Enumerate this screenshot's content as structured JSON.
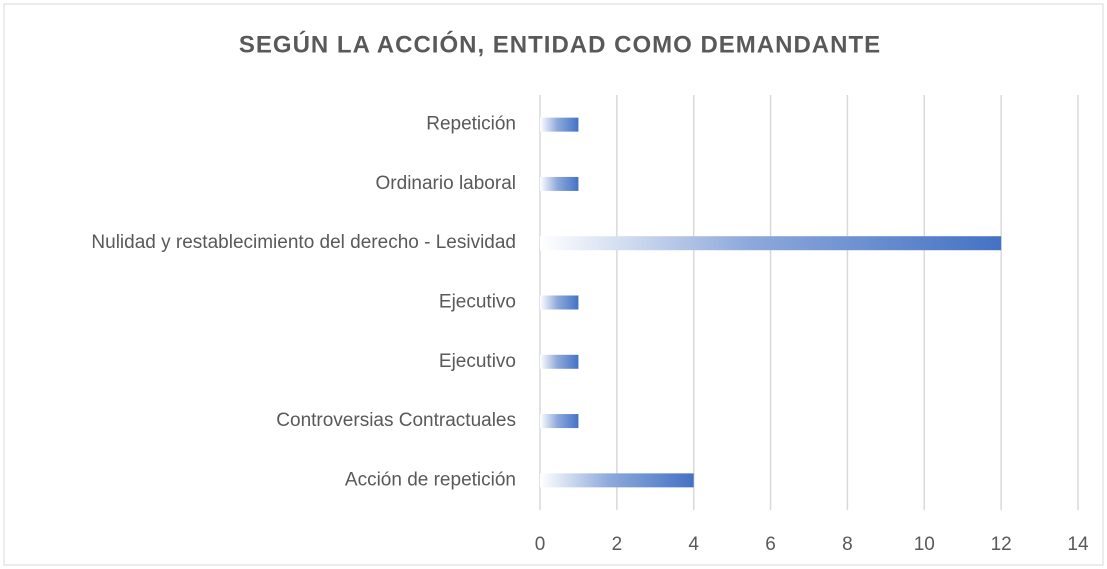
{
  "chart_data": {
    "type": "bar",
    "orientation": "horizontal",
    "title": "SEGÚN LA ACCIÓN, ENTIDAD COMO DEMANDANTE",
    "categories": [
      "Repetición",
      "Ordinario laboral",
      "Nulidad y restablecimiento del derecho - Lesividad",
      "Ejecutivo",
      "Ejecutivo",
      "Controversias Contractuales",
      "Acción de repetición"
    ],
    "values": [
      1,
      1,
      12,
      1,
      1,
      1,
      4
    ],
    "color": "#4472c4",
    "xlim": [
      0,
      14
    ],
    "xticks": [
      0,
      2,
      4,
      6,
      8,
      10,
      12,
      14
    ],
    "grid": true
  }
}
